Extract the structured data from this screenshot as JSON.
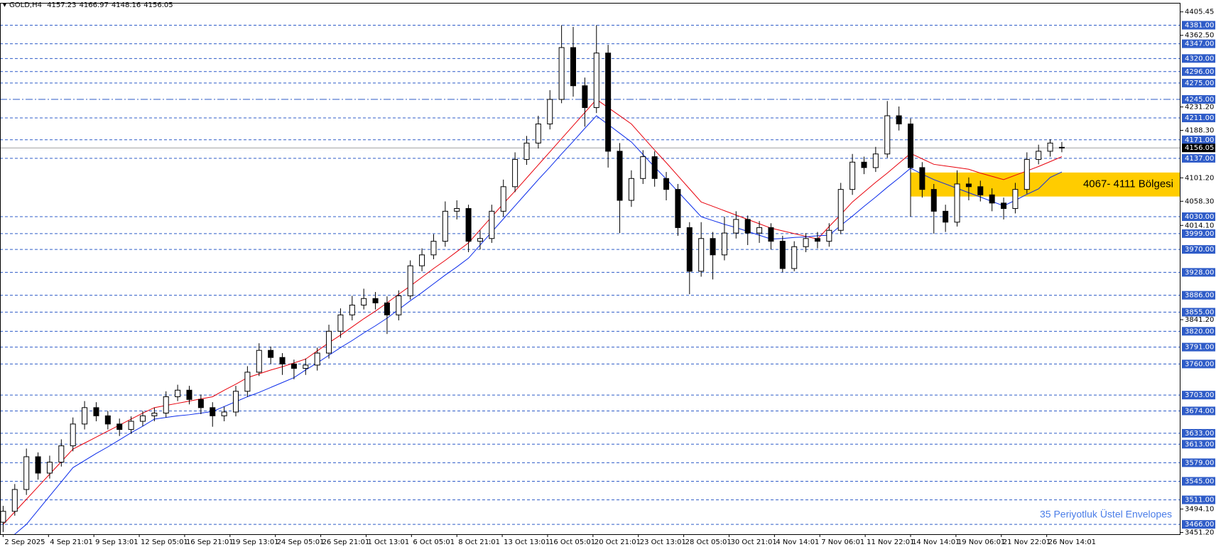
{
  "header": {
    "symbol": "GOLD,H4",
    "open": 4157.23,
    "high": 4166.97,
    "low": 4148.16,
    "close": 4156.05
  },
  "chart_data": {
    "type": "candlestick",
    "xlim": [
      -0.27,
      101.2
    ],
    "ylim": [
      3448,
      4422
    ],
    "xticks": [
      {
        "value": 0,
        "label": "2 Sep 2025"
      },
      {
        "value": 3.9,
        "label": "4 Sep 21:01"
      },
      {
        "value": 7.8,
        "label": "9 Sep 13:01"
      },
      {
        "value": 11.7,
        "label": "12 Sep 05:01"
      },
      {
        "value": 15.6,
        "label": "16 Sep 21:01"
      },
      {
        "value": 19.5,
        "label": "19 Sep 13:01"
      },
      {
        "value": 23.4,
        "label": "24 Sep 05:01"
      },
      {
        "value": 27.3,
        "label": "26 Sep 21:01"
      },
      {
        "value": 31.2,
        "label": "1 Oct 13:01"
      },
      {
        "value": 35.1,
        "label": "6 Oct 05:01"
      },
      {
        "value": 39,
        "label": "8 Oct 21:01"
      },
      {
        "value": 42.9,
        "label": "13 Oct 13:01"
      },
      {
        "value": 46.8,
        "label": "16 Oct 05:01"
      },
      {
        "value": 50.7,
        "label": "20 Oct 21:01"
      },
      {
        "value": 54.6,
        "label": "23 Oct 13:01"
      },
      {
        "value": 58.5,
        "label": "28 Oct 05:01"
      },
      {
        "value": 62.4,
        "label": "30 Oct 21:01"
      },
      {
        "value": 66.3,
        "label": "4 Nov 14:01"
      },
      {
        "value": 70.2,
        "label": "7 Nov 06:01"
      },
      {
        "value": 74.1,
        "label": "11 Nov 22:01"
      },
      {
        "value": 78,
        "label": "14 Nov 14:01"
      },
      {
        "value": 81.9,
        "label": "19 Nov 06:01"
      },
      {
        "value": 85.8,
        "label": "21 Nov 22:01"
      },
      {
        "value": 89.7,
        "label": "26 Nov 14:01"
      }
    ],
    "yticks": [
      {
        "value": 4405.45,
        "label": "4405.45"
      },
      {
        "value": 4362.5,
        "label": "4362.50"
      },
      {
        "value": 4231.2,
        "label": "4231.20"
      },
      {
        "value": 4188.3,
        "label": "4188.30"
      },
      {
        "value": 4101.2,
        "label": "4101.20"
      },
      {
        "value": 4058.3,
        "label": "4058.30"
      },
      {
        "value": 4014.1,
        "label": "4014.10"
      },
      {
        "value": 3841.2,
        "label": "3841.20"
      },
      {
        "value": 3494.1,
        "label": "3494.10"
      },
      {
        "value": 3451.2,
        "label": "3451.20"
      }
    ],
    "open": [
      3470,
      3490,
      3530,
      3590,
      3560,
      3580,
      3610,
      3650,
      3680,
      3665,
      3650,
      3640,
      3655,
      3665,
      3670,
      3700,
      3712,
      3695,
      3680,
      3665,
      3672,
      3710,
      3745,
      3785,
      3772,
      3760,
      3752,
      3758,
      3780,
      3820,
      3850,
      3868,
      3880,
      3872,
      3850,
      3885,
      3940,
      3960,
      3985,
      4040,
      4045,
      3985,
      3990,
      4040,
      4085,
      4135,
      4165,
      4200,
      4245,
      4340,
      4270,
      4230,
      4330,
      4150,
      4060,
      4100,
      4140,
      4100,
      4080,
      4010,
      3930,
      3990,
      3960,
      4000,
      4025,
      4000,
      4010,
      3985,
      3935,
      3975,
      3990,
      3985,
      4005,
      4080,
      4130,
      4120,
      4145,
      4215,
      4200,
      4120,
      4080,
      4040,
      4020,
      4090,
      4085,
      4070,
      4055,
      4045,
      4080,
      4135,
      4150,
      4157.23
    ],
    "high": [
      3500,
      3540,
      3605,
      3598,
      3592,
      3622,
      3662,
      3692,
      3690,
      3674,
      3660,
      3664,
      3674,
      3680,
      3710,
      3722,
      3720,
      3704,
      3690,
      3682,
      3720,
      3756,
      3798,
      3792,
      3780,
      3768,
      3770,
      3790,
      3832,
      3862,
      3885,
      3898,
      3892,
      3884,
      3895,
      3950,
      3972,
      3998,
      4058,
      4060,
      4052,
      4005,
      4052,
      4098,
      4148,
      4178,
      4215,
      4262,
      4381,
      4378,
      4285,
      4381,
      4345,
      4165,
      4115,
      4152,
      4150,
      4112,
      4090,
      4020,
      4020,
      4002,
      4030,
      4040,
      4032,
      4022,
      4018,
      3995,
      3985,
      4000,
      4002,
      4018,
      4092,
      4145,
      4140,
      4158,
      4242,
      4232,
      4210,
      4130,
      4090,
      4052,
      4115,
      4102,
      4096,
      4082,
      4065,
      4092,
      4148,
      4162,
      4172,
      4166.97
    ],
    "low": [
      3452,
      3482,
      3520,
      3548,
      3550,
      3572,
      3600,
      3640,
      3655,
      3640,
      3628,
      3632,
      3646,
      3655,
      3662,
      3692,
      3686,
      3668,
      3645,
      3655,
      3664,
      3700,
      3738,
      3760,
      3740,
      3732,
      3740,
      3748,
      3770,
      3808,
      3840,
      3860,
      3860,
      3815,
      3840,
      3878,
      3930,
      3952,
      3975,
      4025,
      3965,
      3970,
      3982,
      4030,
      4075,
      4125,
      4155,
      4190,
      4238,
      4250,
      4195,
      4220,
      4120,
      4000,
      4048,
      4090,
      4085,
      4060,
      3995,
      3888,
      3920,
      3915,
      3950,
      3990,
      3978,
      3982,
      3970,
      3928,
      3930,
      3965,
      3972,
      3975,
      3998,
      4070,
      4108,
      4112,
      4138,
      4188,
      4030,
      4065,
      3999,
      4002,
      4012,
      4060,
      4058,
      4040,
      4025,
      4036,
      4072,
      4126,
      4140,
      4148.16
    ],
    "close": [
      3490,
      3530,
      3590,
      3560,
      3580,
      3610,
      3650,
      3680,
      3665,
      3650,
      3640,
      3655,
      3665,
      3670,
      3700,
      3712,
      3695,
      3680,
      3665,
      3672,
      3710,
      3745,
      3785,
      3772,
      3760,
      3752,
      3758,
      3780,
      3820,
      3850,
      3868,
      3880,
      3872,
      3850,
      3885,
      3940,
      3960,
      3985,
      4040,
      4045,
      3985,
      3990,
      4040,
      4085,
      4135,
      4165,
      4200,
      4245,
      4340,
      4270,
      4230,
      4330,
      4150,
      4060,
      4100,
      4140,
      4100,
      4080,
      4010,
      3930,
      3990,
      3960,
      4000,
      4025,
      4000,
      4010,
      3985,
      3935,
      3975,
      3990,
      3985,
      4005,
      4080,
      4130,
      4120,
      4145,
      4215,
      4200,
      4120,
      4080,
      4040,
      4020,
      4090,
      4085,
      4070,
      4055,
      4045,
      4080,
      4135,
      4150,
      4165,
      4156.05
    ],
    "up_color": "#ffffff",
    "down_color": "#000000",
    "envelopes": [
      {
        "color": "#e8000b",
        "values": [
          3466,
          3489,
          3512,
          3535,
          3558,
          3581,
          3604,
          3615,
          3626,
          3637,
          3648,
          3659,
          3670,
          3680,
          3684,
          3688,
          3692,
          3696,
          3700,
          3712,
          3723,
          3735,
          3742,
          3749,
          3755,
          3762,
          3769,
          3784,
          3799,
          3813,
          3828,
          3843,
          3857,
          3872,
          3888,
          3903,
          3919,
          3935,
          3950,
          3966,
          3982,
          4006,
          4030,
          4054,
          4077,
          4101,
          4125,
          4149,
          4173,
          4197,
          4221,
          4245,
          4230,
          4215,
          4200,
          4176,
          4152,
          4129,
          4105,
          4081,
          4057,
          4049,
          4041,
          4033,
          4025,
          4017,
          4009,
          4004,
          3999,
          3994,
          3989,
          4012,
          4034,
          4057,
          4075,
          4093,
          4110,
          4128,
          4146,
          4136,
          4126,
          4123,
          4120,
          4117,
          4110,
          4104,
          4098,
          4106,
          4114,
          4122,
          4131,
          4140
        ]
      },
      {
        "color": "#0a2bea",
        "values": [
          3430,
          3448,
          3466,
          3492,
          3518,
          3544,
          3570,
          3583,
          3596,
          3608,
          3621,
          3634,
          3646,
          3659,
          3662,
          3665,
          3667,
          3670,
          3673,
          3682,
          3691,
          3700,
          3708,
          3717,
          3726,
          3735,
          3749,
          3762,
          3776,
          3790,
          3803,
          3817,
          3830,
          3844,
          3860,
          3876,
          3891,
          3907,
          3923,
          3938,
          3954,
          3978,
          4002,
          4026,
          4050,
          4074,
          4098,
          4121,
          4145,
          4168,
          4192,
          4215,
          4199,
          4183,
          4167,
          4144,
          4121,
          4099,
          4076,
          4053,
          4030,
          4023,
          4016,
          4010,
          4003,
          3996,
          3989,
          3990,
          3992,
          3993,
          3995,
          3996,
          4014,
          4031,
          4049,
          4066,
          4084,
          4101,
          4119,
          4108,
          4098,
          4090,
          4082,
          4074,
          4066,
          4058,
          4050,
          4060,
          4071,
          4081,
          4102,
          4112
        ]
      }
    ],
    "levels": [
      {
        "value": 4381,
        "label": "4381.00"
      },
      {
        "value": 4347,
        "label": "4347.00"
      },
      {
        "value": 4320,
        "label": "4320.00"
      },
      {
        "value": 4296,
        "label": "4296.00"
      },
      {
        "value": 4275,
        "label": "4275.00"
      },
      {
        "value": 4245,
        "label": "4245.00",
        "style": "dashdot"
      },
      {
        "value": 4211,
        "label": "4211.00"
      },
      {
        "value": 4171,
        "label": "4171.00"
      },
      {
        "value": 4137,
        "label": "4137.00"
      },
      {
        "value": 4030,
        "label": "4030.00"
      },
      {
        "value": 3999,
        "label": "3999.00"
      },
      {
        "value": 3970,
        "label": "3970.00"
      },
      {
        "value": 3928,
        "label": "3928.00"
      },
      {
        "value": 3886,
        "label": "3886.00"
      },
      {
        "value": 3855,
        "label": "3855.00"
      },
      {
        "value": 3820,
        "label": "3820.00"
      },
      {
        "value": 3791,
        "label": "3791.00"
      },
      {
        "value": 3760,
        "label": "3760.00"
      },
      {
        "value": 3703,
        "label": "3703.00"
      },
      {
        "value": 3674,
        "label": "3674.00"
      },
      {
        "value": 3633,
        "label": "3633.00"
      },
      {
        "value": 3613,
        "label": "3613.00"
      },
      {
        "value": 3579,
        "label": "3579.00"
      },
      {
        "value": 3545,
        "label": "3545.00"
      },
      {
        "value": 3511,
        "label": "3511.00"
      },
      {
        "value": 3466,
        "label": "3466.00"
      }
    ],
    "level_color": "#2f5cc8",
    "current_price": 4156.05,
    "zone": {
      "from": 78,
      "low": 4067,
      "high": 4111,
      "label": "4067- 4111 Bölgesi",
      "color": "#ffcc00"
    },
    "annotation": "35 Periyotluk Üstel Envelopes"
  }
}
